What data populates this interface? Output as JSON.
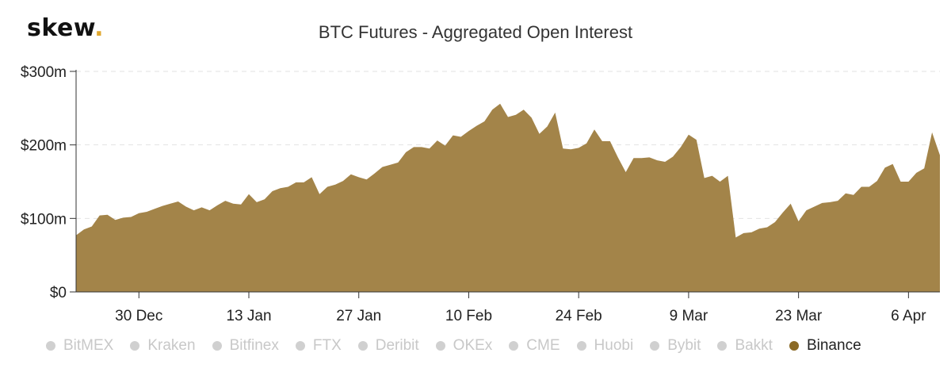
{
  "brand": {
    "name": "skew",
    "dot": "."
  },
  "chart_data": {
    "type": "area",
    "title": "BTC Futures - Aggregated Open Interest",
    "y_unit": "m",
    "ylim": [
      0,
      300
    ],
    "y_ticks": [
      {
        "value": 0,
        "label": "$0"
      },
      {
        "value": 100,
        "label": "$100m"
      },
      {
        "value": 200,
        "label": "$200m"
      },
      {
        "value": 300,
        "label": "$300m"
      }
    ],
    "xlim": [
      "2019-12-22",
      "2020-04-10"
    ],
    "x_ticks": [
      {
        "date": "2019-12-30",
        "label": "30 Dec"
      },
      {
        "date": "2020-01-13",
        "label": "13 Jan"
      },
      {
        "date": "2020-01-27",
        "label": "27 Jan"
      },
      {
        "date": "2020-02-10",
        "label": "10 Feb"
      },
      {
        "date": "2020-02-24",
        "label": "24 Feb"
      },
      {
        "date": "2020-03-09",
        "label": "9 Mar"
      },
      {
        "date": "2020-03-23",
        "label": "23 Mar"
      },
      {
        "date": "2020-04-06",
        "label": "6 Apr"
      }
    ],
    "grid": "horizontal-dashed",
    "legend_position": "bottom",
    "series": [
      {
        "name": "Binance",
        "color": "#a38449",
        "points": [
          [
            "2019-12-22",
            77
          ],
          [
            "2019-12-23",
            85
          ],
          [
            "2019-12-24",
            89
          ],
          [
            "2019-12-25",
            104
          ],
          [
            "2019-12-26",
            105
          ],
          [
            "2019-12-27",
            98
          ],
          [
            "2019-12-28",
            101
          ],
          [
            "2019-12-29",
            102
          ],
          [
            "2019-12-30",
            107
          ],
          [
            "2019-12-31",
            109
          ],
          [
            "2020-01-01",
            113
          ],
          [
            "2020-01-02",
            117
          ],
          [
            "2020-01-03",
            120
          ],
          [
            "2020-01-04",
            123
          ],
          [
            "2020-01-05",
            116
          ],
          [
            "2020-01-06",
            111
          ],
          [
            "2020-01-07",
            115
          ],
          [
            "2020-01-08",
            111
          ],
          [
            "2020-01-09",
            118
          ],
          [
            "2020-01-10",
            124
          ],
          [
            "2020-01-11",
            120
          ],
          [
            "2020-01-12",
            119
          ],
          [
            "2020-01-13",
            133
          ],
          [
            "2020-01-14",
            122
          ],
          [
            "2020-01-15",
            126
          ],
          [
            "2020-01-16",
            137
          ],
          [
            "2020-01-17",
            141
          ],
          [
            "2020-01-18",
            143
          ],
          [
            "2020-01-19",
            149
          ],
          [
            "2020-01-20",
            149
          ],
          [
            "2020-01-21",
            156
          ],
          [
            "2020-01-22",
            133
          ],
          [
            "2020-01-23",
            143
          ],
          [
            "2020-01-24",
            146
          ],
          [
            "2020-01-25",
            151
          ],
          [
            "2020-01-26",
            160
          ],
          [
            "2020-01-27",
            156
          ],
          [
            "2020-01-28",
            153
          ],
          [
            "2020-01-29",
            161
          ],
          [
            "2020-01-30",
            170
          ],
          [
            "2020-01-31",
            173
          ],
          [
            "2020-02-01",
            176
          ],
          [
            "2020-02-02",
            190
          ],
          [
            "2020-02-03",
            197
          ],
          [
            "2020-02-04",
            197
          ],
          [
            "2020-02-05",
            195
          ],
          [
            "2020-02-06",
            206
          ],
          [
            "2020-02-07",
            199
          ],
          [
            "2020-02-08",
            213
          ],
          [
            "2020-02-09",
            211
          ],
          [
            "2020-02-10",
            219
          ],
          [
            "2020-02-11",
            226
          ],
          [
            "2020-02-12",
            232
          ],
          [
            "2020-02-13",
            248
          ],
          [
            "2020-02-14",
            256
          ],
          [
            "2020-02-15",
            238
          ],
          [
            "2020-02-16",
            241
          ],
          [
            "2020-02-17",
            248
          ],
          [
            "2020-02-18",
            237
          ],
          [
            "2020-02-19",
            215
          ],
          [
            "2020-02-20",
            225
          ],
          [
            "2020-02-21",
            244
          ],
          [
            "2020-02-22",
            195
          ],
          [
            "2020-02-23",
            194
          ],
          [
            "2020-02-24",
            196
          ],
          [
            "2020-02-25",
            202
          ],
          [
            "2020-02-26",
            221
          ],
          [
            "2020-02-27",
            205
          ],
          [
            "2020-02-28",
            205
          ],
          [
            "2020-02-29",
            183
          ],
          [
            "2020-03-01",
            163
          ],
          [
            "2020-03-02",
            182
          ],
          [
            "2020-03-03",
            182
          ],
          [
            "2020-03-04",
            183
          ],
          [
            "2020-03-05",
            179
          ],
          [
            "2020-03-06",
            177
          ],
          [
            "2020-03-07",
            184
          ],
          [
            "2020-03-08",
            197
          ],
          [
            "2020-03-09",
            214
          ],
          [
            "2020-03-10",
            207
          ],
          [
            "2020-03-11",
            155
          ],
          [
            "2020-03-12",
            158
          ],
          [
            "2020-03-13",
            150
          ],
          [
            "2020-03-14",
            158
          ],
          [
            "2020-03-15",
            74
          ],
          [
            "2020-03-16",
            80
          ],
          [
            "2020-03-17",
            81
          ],
          [
            "2020-03-18",
            86
          ],
          [
            "2020-03-19",
            88
          ],
          [
            "2020-03-20",
            95
          ],
          [
            "2020-03-21",
            108
          ],
          [
            "2020-03-22",
            120
          ],
          [
            "2020-03-23",
            96
          ],
          [
            "2020-03-24",
            111
          ],
          [
            "2020-03-25",
            116
          ],
          [
            "2020-03-26",
            121
          ],
          [
            "2020-03-27",
            122
          ],
          [
            "2020-03-28",
            124
          ],
          [
            "2020-03-29",
            134
          ],
          [
            "2020-03-30",
            132
          ],
          [
            "2020-03-31",
            143
          ],
          [
            "2020-04-01",
            143
          ],
          [
            "2020-04-02",
            151
          ],
          [
            "2020-04-03",
            169
          ],
          [
            "2020-04-04",
            174
          ],
          [
            "2020-04-05",
            150
          ],
          [
            "2020-04-06",
            150
          ],
          [
            "2020-04-07",
            162
          ],
          [
            "2020-04-08",
            168
          ],
          [
            "2020-04-09",
            217
          ],
          [
            "2020-04-10",
            186
          ]
        ]
      }
    ],
    "legend": [
      {
        "name": "BitMEX",
        "active": false
      },
      {
        "name": "Kraken",
        "active": false
      },
      {
        "name": "Bitfinex",
        "active": false
      },
      {
        "name": "FTX",
        "active": false
      },
      {
        "name": "Deribit",
        "active": false
      },
      {
        "name": "OKEx",
        "active": false
      },
      {
        "name": "CME",
        "active": false
      },
      {
        "name": "Huobi",
        "active": false
      },
      {
        "name": "Bybit",
        "active": false
      },
      {
        "name": "Bakkt",
        "active": false
      },
      {
        "name": "Binance",
        "active": true
      }
    ]
  }
}
